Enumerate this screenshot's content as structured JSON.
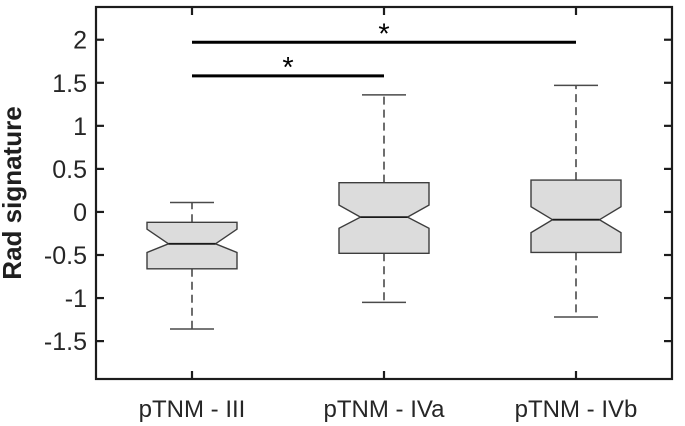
{
  "chart_data": {
    "type": "boxplot",
    "title": "",
    "ylabel": "Rad signature",
    "xlabel": "",
    "categories": [
      "pTNM - III",
      "pTNM - IVa",
      "pTNM - IVb"
    ],
    "ylim": [
      -1.94,
      2.38
    ],
    "yticks": [
      2,
      1.5,
      1,
      0.5,
      0,
      -0.5,
      -1,
      -1.5
    ],
    "grid": false,
    "notched": true,
    "box_orientation": "vertical",
    "series": [
      {
        "name": "pTNM - III",
        "whisker_low": -1.36,
        "q1": -0.66,
        "median": -0.37,
        "q3": -0.12,
        "whisker_high": 0.11,
        "notch_low": -0.47,
        "notch_high": -0.2
      },
      {
        "name": "pTNM - IVa",
        "whisker_low": -1.05,
        "q1": -0.48,
        "median": -0.06,
        "q3": 0.34,
        "whisker_high": 1.36,
        "notch_low": -0.19,
        "notch_high": 0.08
      },
      {
        "name": "pTNM - IVb",
        "whisker_low": -1.22,
        "q1": -0.47,
        "median": -0.09,
        "q3": 0.37,
        "whisker_high": 1.47,
        "notch_low": -0.24,
        "notch_high": 0.06
      }
    ],
    "significance_bars": [
      {
        "from": "pTNM - III",
        "to": "pTNM - IVa",
        "y": 1.58,
        "label": "*"
      },
      {
        "from": "pTNM - III",
        "to": "pTNM - IVb",
        "y": 1.97,
        "label": "*"
      }
    ],
    "colors": {
      "background": "#ffffff",
      "box_fill": "#dcdcdc",
      "box_edge": "#3d3d3d",
      "median": "#1a1a1a",
      "whisker": "#4a4a4a",
      "axis": "#1c1c1c",
      "text": "#262626",
      "significance": "#000000"
    }
  }
}
